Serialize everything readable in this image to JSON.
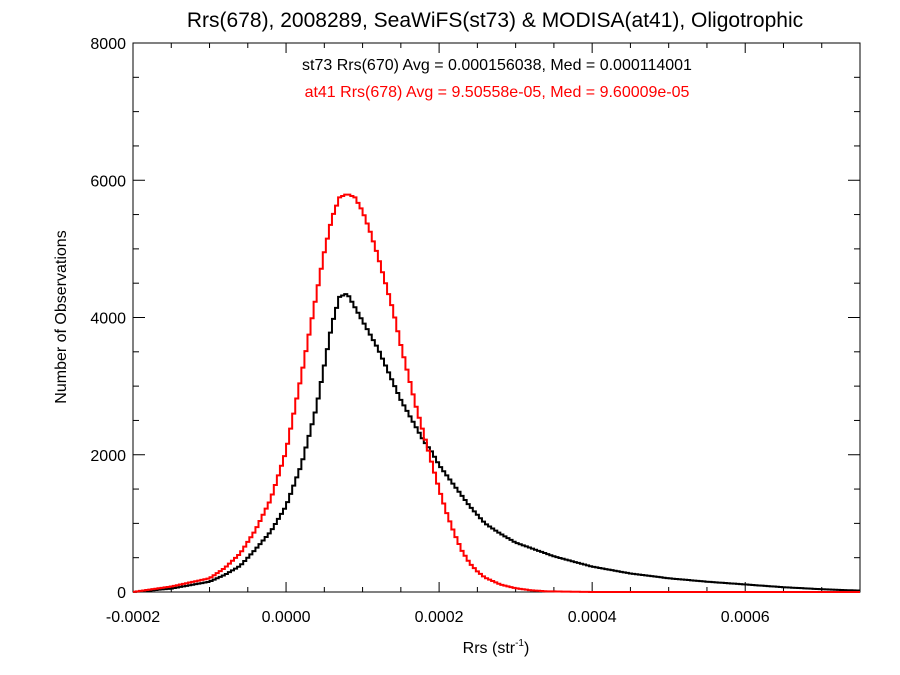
{
  "chart_data": {
    "type": "line",
    "title": "Rrs(678), 2008289, SeaWiFS(st73) & MODISA(at41), Oligotrophic",
    "xlabel_main": "Rrs (str",
    "xlabel_sup": "-1",
    "xlabel_close": ")",
    "ylabel": "Number of Observations",
    "xlim": [
      -0.0002,
      0.00075
    ],
    "ylim": [
      0,
      8000
    ],
    "xticks": [
      -0.0002,
      0.0,
      0.0002,
      0.0004,
      0.0006
    ],
    "xtick_labels": [
      "-0.0002",
      "0.0000",
      "0.0002",
      "0.0004",
      "0.0006"
    ],
    "yticks": [
      0,
      2000,
      4000,
      6000,
      8000
    ],
    "ytick_labels": [
      "0",
      "2000",
      "4000",
      "6000",
      "8000"
    ],
    "annotations": [
      {
        "text": "st73 Rrs(670) Avg = 0.000156038, Med = 0.000114001",
        "color": "#000000"
      },
      {
        "text": "at41 Rrs(678) Avg = 9.50558e-05, Med = 9.60009e-05",
        "color": "#ff0000"
      }
    ],
    "series": [
      {
        "color": "#000000",
        "x": [
          -0.0002,
          -0.00015,
          -0.0001,
          -8e-05,
          -6e-05,
          -4e-05,
          -2e-05,
          0.0,
          2e-05,
          4e-05,
          5e-05,
          6e-05,
          7e-05,
          8e-05,
          9e-05,
          0.0001,
          0.00011,
          0.00012,
          0.00013,
          0.00014,
          0.00015,
          0.00016,
          0.00017,
          0.00018,
          0.00019,
          0.0002,
          0.00022,
          0.00024,
          0.00026,
          0.00028,
          0.0003,
          0.00035,
          0.0004,
          0.00045,
          0.0005,
          0.00055,
          0.0006,
          0.00065,
          0.0007,
          0.00075
        ],
        "values": [
          0,
          50,
          150,
          250,
          380,
          620,
          880,
          1250,
          1850,
          2700,
          3300,
          3900,
          4300,
          4350,
          4150,
          3950,
          3750,
          3550,
          3300,
          3050,
          2800,
          2600,
          2400,
          2200,
          2050,
          1850,
          1550,
          1250,
          1000,
          850,
          720,
          520,
          370,
          270,
          200,
          150,
          110,
          70,
          40,
          20
        ]
      },
      {
        "color": "#ff0000",
        "x": [
          -0.0002,
          -0.00015,
          -0.0001,
          -8e-05,
          -6e-05,
          -4e-05,
          -2e-05,
          0.0,
          2e-05,
          4e-05,
          5e-05,
          6e-05,
          7e-05,
          8e-05,
          9e-05,
          0.0001,
          0.00011,
          0.00012,
          0.00013,
          0.00014,
          0.00015,
          0.00016,
          0.00017,
          0.00018,
          0.00019,
          0.0002,
          0.00021,
          0.00022,
          0.00023,
          0.00024,
          0.00025,
          0.00026,
          0.00028,
          0.0003,
          0.00032,
          0.00034,
          0.0004,
          0.00075
        ],
        "values": [
          0,
          80,
          200,
          350,
          560,
          900,
          1350,
          2050,
          3150,
          4350,
          4950,
          5450,
          5750,
          5800,
          5750,
          5550,
          5250,
          4900,
          4500,
          4100,
          3600,
          3150,
          2700,
          2300,
          1900,
          1500,
          1150,
          850,
          600,
          420,
          300,
          210,
          110,
          55,
          25,
          10,
          0,
          0
        ]
      }
    ]
  }
}
